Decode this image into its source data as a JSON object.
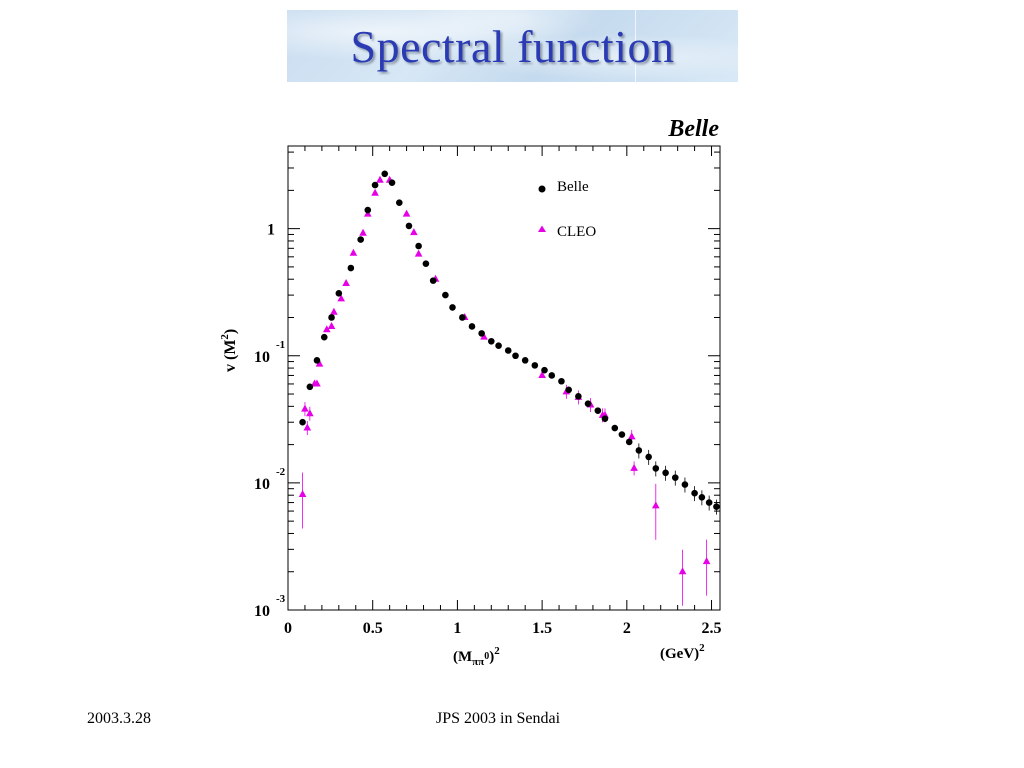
{
  "slide": {
    "title": "Spectral function",
    "footer_left": "2003.3.28",
    "footer_center": "JPS 2003 in Sendai"
  },
  "chart_data": {
    "type": "scatter",
    "corner_label": "Belle",
    "xlabel": {
      "main": "(M",
      "sub": "ππ",
      "sup1": "0",
      "close": ")",
      "sup2": "2"
    },
    "xunit": {
      "main": "(GeV)",
      "sup": "2"
    },
    "ylabel": {
      "main": "v (M",
      "sup": "2",
      "close": ")"
    },
    "xlim": [
      0,
      2.55
    ],
    "ylim_log10": [
      -3,
      0.65
    ],
    "y_scale": "log",
    "x_ticks": [
      {
        "value": 0,
        "label": "0"
      },
      {
        "value": 0.5,
        "label": "0.5"
      },
      {
        "value": 1,
        "label": "1"
      },
      {
        "value": 1.5,
        "label": "1.5"
      },
      {
        "value": 2,
        "label": "2"
      },
      {
        "value": 2.5,
        "label": "2.5"
      }
    ],
    "y_ticks": [
      {
        "exp": 0,
        "base": "1",
        "sup": ""
      },
      {
        "exp": -1,
        "base": "10",
        "sup": "-1"
      },
      {
        "exp": -2,
        "base": "10",
        "sup": "-2"
      },
      {
        "exp": -3,
        "base": "10",
        "sup": "-3"
      }
    ],
    "legend_position": "top-right",
    "colors": {
      "belle": "#000000",
      "cleo": "#e600e6"
    },
    "series": [
      {
        "name": "Belle",
        "marker": "circle",
        "points": [
          [
            0.086,
            0.03
          ],
          [
            0.129,
            0.057
          ],
          [
            0.171,
            0.092
          ],
          [
            0.214,
            0.14
          ],
          [
            0.257,
            0.2
          ],
          [
            0.3,
            0.31
          ],
          [
            0.371,
            0.49
          ],
          [
            0.429,
            0.82
          ],
          [
            0.471,
            1.4
          ],
          [
            0.514,
            2.2
          ],
          [
            0.571,
            2.7
          ],
          [
            0.614,
            2.3
          ],
          [
            0.657,
            1.6
          ],
          [
            0.714,
            1.05
          ],
          [
            0.771,
            0.73
          ],
          [
            0.814,
            0.53
          ],
          [
            0.857,
            0.39
          ],
          [
            0.929,
            0.3
          ],
          [
            0.971,
            0.24
          ],
          [
            1.029,
            0.2
          ],
          [
            1.086,
            0.17
          ],
          [
            1.143,
            0.15
          ],
          [
            1.2,
            0.13
          ],
          [
            1.243,
            0.12
          ],
          [
            1.3,
            0.11
          ],
          [
            1.343,
            0.1
          ],
          [
            1.4,
            0.092
          ],
          [
            1.457,
            0.084
          ],
          [
            1.514,
            0.077
          ],
          [
            1.557,
            0.07
          ],
          [
            1.614,
            0.063
          ],
          [
            1.657,
            0.054
          ],
          [
            1.714,
            0.048
          ],
          [
            1.771,
            0.042
          ],
          [
            1.829,
            0.037
          ],
          [
            1.871,
            0.032
          ],
          [
            1.929,
            0.027
          ],
          [
            1.971,
            0.024
          ],
          [
            2.014,
            0.021
          ],
          [
            2.071,
            0.018
          ],
          [
            2.129,
            0.016
          ],
          [
            2.171,
            0.013
          ],
          [
            2.229,
            0.012
          ],
          [
            2.286,
            0.011
          ],
          [
            2.343,
            0.0097
          ],
          [
            2.4,
            0.0083
          ],
          [
            2.443,
            0.0077
          ],
          [
            2.486,
            0.007
          ],
          [
            2.529,
            0.0065
          ]
        ]
      },
      {
        "name": "CLEO",
        "marker": "triangle",
        "points": [
          [
            0.086,
            0.0081
          ],
          [
            0.1,
            0.038
          ],
          [
            0.114,
            0.027
          ],
          [
            0.129,
            0.035
          ],
          [
            0.157,
            0.06
          ],
          [
            0.171,
            0.06
          ],
          [
            0.186,
            0.086
          ],
          [
            0.229,
            0.16
          ],
          [
            0.257,
            0.17
          ],
          [
            0.271,
            0.22
          ],
          [
            0.314,
            0.28
          ],
          [
            0.343,
            0.37
          ],
          [
            0.386,
            0.64
          ],
          [
            0.443,
            0.92
          ],
          [
            0.471,
            1.3
          ],
          [
            0.514,
            1.9
          ],
          [
            0.543,
            2.4
          ],
          [
            0.6,
            2.4
          ],
          [
            0.7,
            1.3
          ],
          [
            0.743,
            0.93
          ],
          [
            0.771,
            0.63
          ],
          [
            0.871,
            0.4
          ],
          [
            1.043,
            0.2
          ],
          [
            1.157,
            0.14
          ],
          [
            1.5,
            0.07
          ],
          [
            1.643,
            0.052
          ],
          [
            1.714,
            0.047
          ],
          [
            1.786,
            0.041
          ],
          [
            1.857,
            0.034
          ],
          [
            1.871,
            0.034
          ],
          [
            2.029,
            0.023
          ],
          [
            2.043,
            0.013
          ],
          [
            2.171,
            0.0066
          ],
          [
            2.329,
            0.002
          ],
          [
            2.471,
            0.0024
          ]
        ]
      }
    ]
  }
}
